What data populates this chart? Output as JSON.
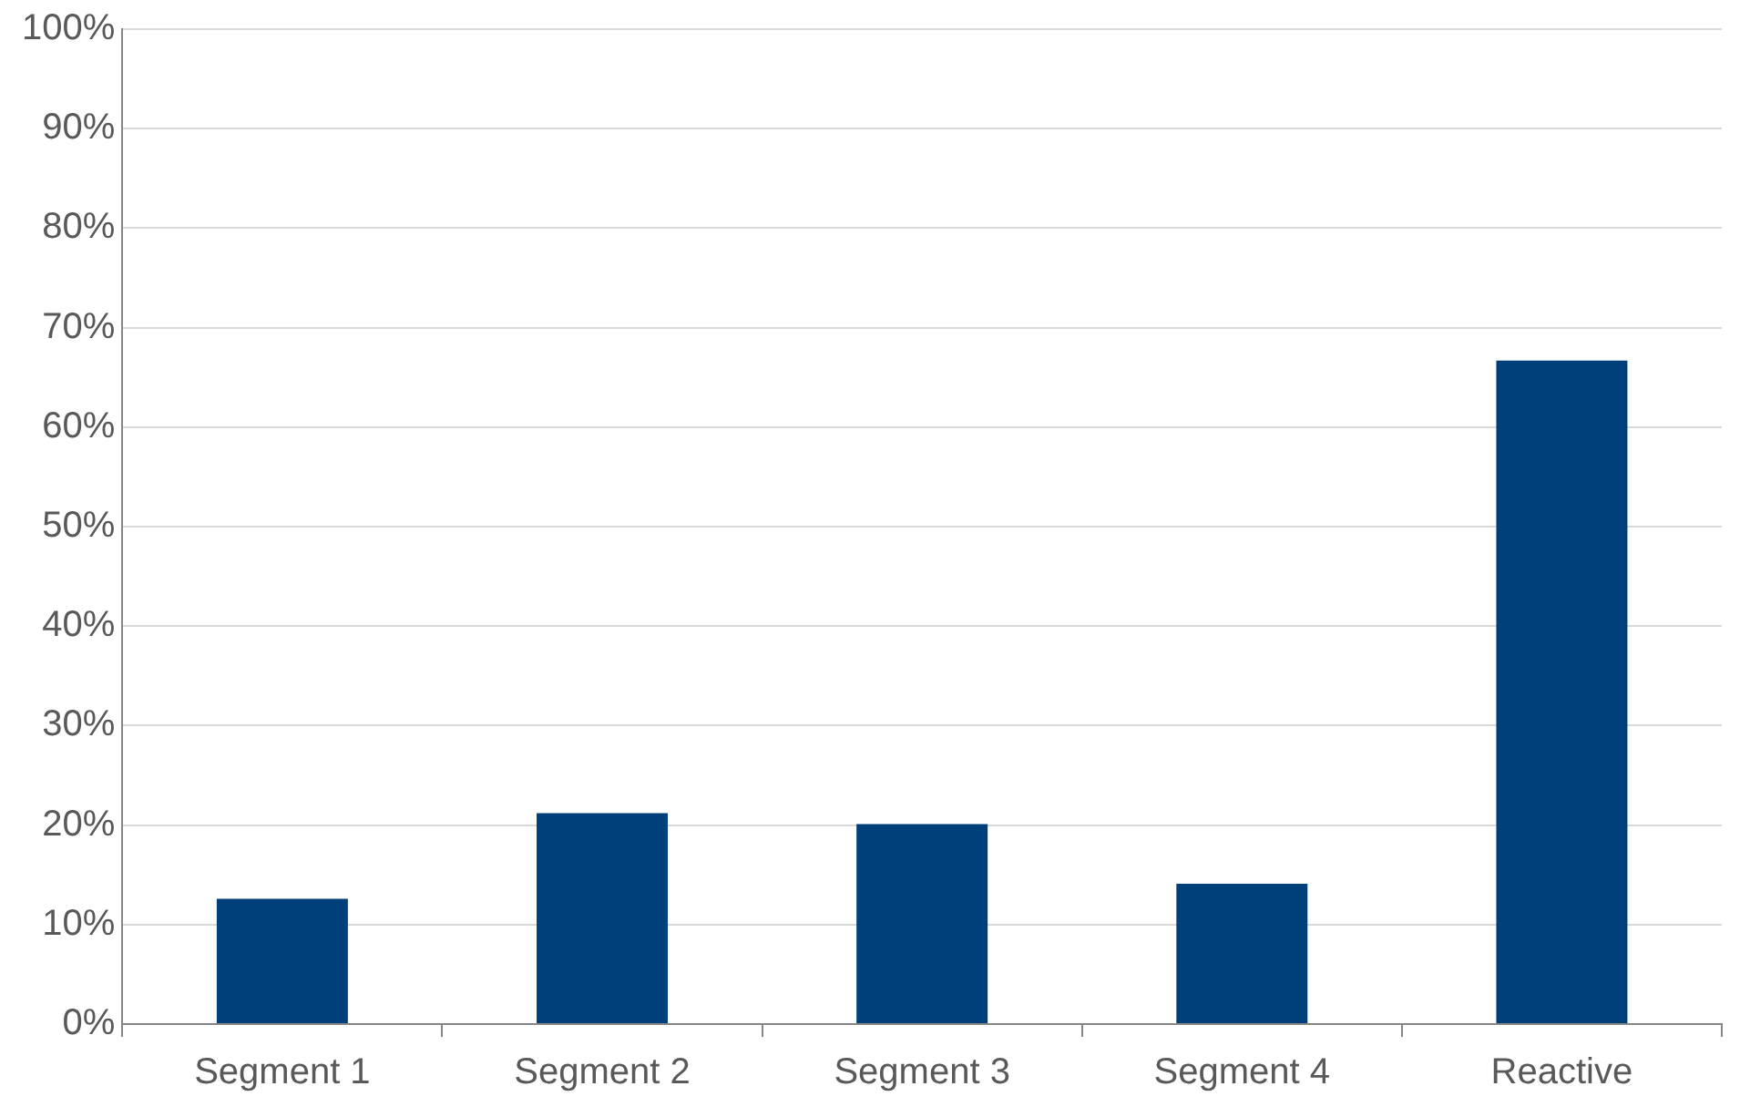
{
  "chart_data": {
    "type": "bar",
    "categories": [
      "Segment 1",
      "Segment 2",
      "Segment 3",
      "Segment 4",
      "Reactive"
    ],
    "values": [
      12.6,
      21.2,
      20.1,
      14.1,
      66.7
    ],
    "color": "#00407a",
    "ylim": [
      0,
      100
    ],
    "yticks": [
      {
        "value": 0,
        "label": "0%"
      },
      {
        "value": 10,
        "label": "10%"
      },
      {
        "value": 20,
        "label": "20%"
      },
      {
        "value": 30,
        "label": "30%"
      },
      {
        "value": 40,
        "label": "40%"
      },
      {
        "value": 50,
        "label": "50%"
      },
      {
        "value": 60,
        "label": "60%"
      },
      {
        "value": 70,
        "label": "70%"
      },
      {
        "value": 80,
        "label": "80%"
      },
      {
        "value": 90,
        "label": "90%"
      },
      {
        "value": 100,
        "label": "100%"
      }
    ],
    "grid": "y",
    "legend": false
  }
}
